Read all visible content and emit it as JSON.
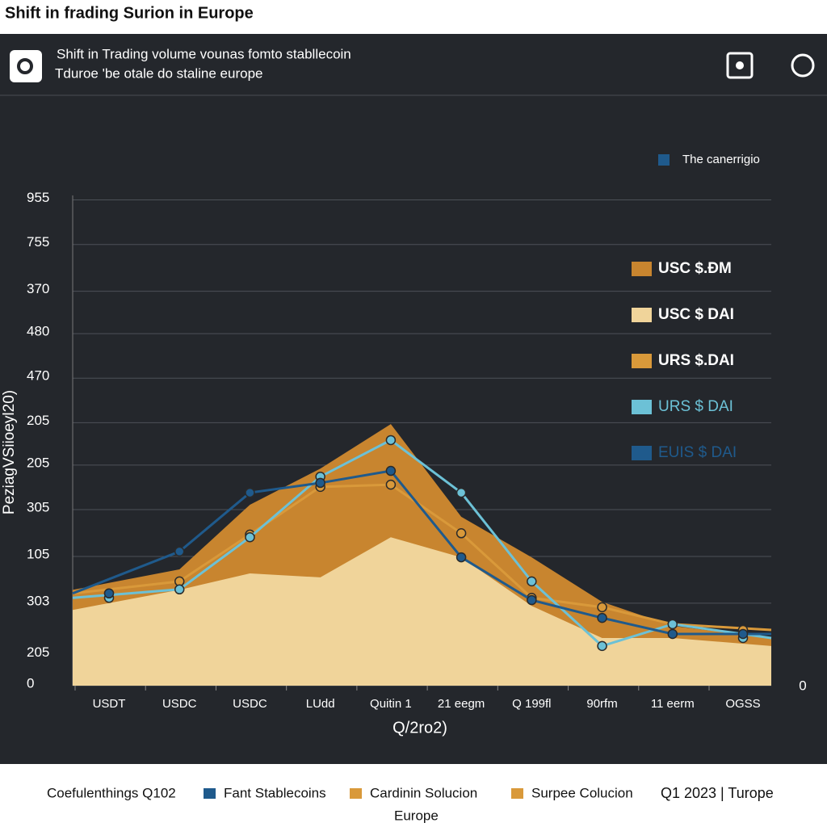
{
  "chart_data": {
    "type": "area-line",
    "page_title": "Shift in frading Surion in Europe",
    "title": "Shift in Trading volume vounas fomto stabllecoin",
    "subtitle": "Tduroe 'be otale do staline europe",
    "top_legend": {
      "label": "The canerrigio",
      "color": "#1f5a8c"
    },
    "ylabel": "PeziagVSiioeyl20)",
    "xlabel": "Q/2ro2)",
    "right_label": "0",
    "categories": [
      "USDT",
      "USDC",
      "USDC",
      "LUdd",
      "Quitin 1",
      "21 eegm",
      "Q 199fl",
      "90rfm",
      "11 eerm",
      "OGSS"
    ],
    "ylim": [
      0,
      1100
    ],
    "yticks": [
      {
        "value": 1090,
        "label": "955"
      },
      {
        "value": 990,
        "label": "755"
      },
      {
        "value": 885,
        "label": "370"
      },
      {
        "value": 790,
        "label": "480"
      },
      {
        "value": 690,
        "label": "470"
      },
      {
        "value": 590,
        "label": "205"
      },
      {
        "value": 495,
        "label": "205"
      },
      {
        "value": 395,
        "label": "305"
      },
      {
        "value": 290,
        "label": "105"
      },
      {
        "value": 185,
        "label": "303"
      },
      {
        "value": 70,
        "label": "205"
      },
      0
    ],
    "grid": true,
    "series": [
      {
        "name": "USC $.ÐM",
        "color": "#c8852f",
        "style": "area",
        "values": [
          215,
          261,
          406,
          487,
          587,
          379,
          288,
          188,
          134,
          107
        ]
      },
      {
        "name": "USC $ DAI",
        "color": "#f0d49a",
        "style": "area",
        "values": [
          170,
          215,
          252,
          243,
          333,
          288,
          179,
          107,
          107,
          89
        ]
      },
      {
        "name": "URS $.DAI",
        "color": "#d9993a",
        "style": "line",
        "values": [
          207,
          234,
          339,
          446,
          451,
          342,
          197,
          176,
          138,
          125
        ]
      },
      {
        "name": "URS $ DAI",
        "color": "#6cc1d6",
        "style": "line",
        "values": [
          197,
          216,
          333,
          469,
          551,
          433,
          234,
          89,
          138,
          107
        ]
      },
      {
        "name": "EUIS $ DAI",
        "color": "#1f5a8c",
        "style": "line",
        "values": [
          207,
          301,
          433,
          455,
          482,
          288,
          192,
          152,
          116,
          116
        ]
      }
    ],
    "footer": {
      "caption": "Coefulenthings Q102",
      "items": [
        {
          "label": "Fant Stablecoins",
          "color": "#1f5a8c"
        },
        {
          "label": "Cardinin Solucion",
          "color": "#d9993a"
        },
        {
          "label": "Surpee Colucion",
          "color": "#d9993a"
        }
      ],
      "period": "Q1 2023  |  Turope",
      "region": "Europe"
    }
  }
}
